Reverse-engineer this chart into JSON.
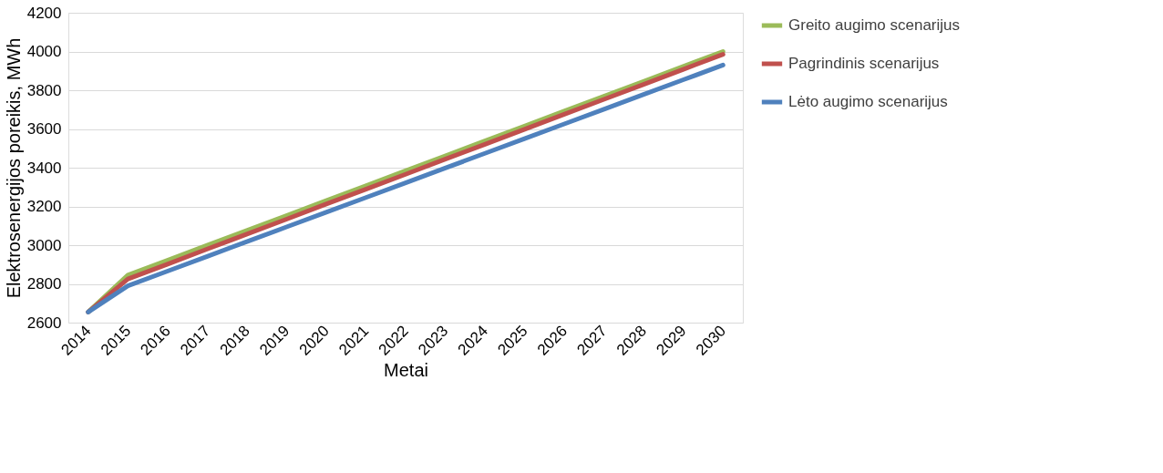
{
  "chart_data": {
    "type": "line",
    "xlabel": "Metai",
    "ylabel": "Elektrosenergijos poreikis, MWh",
    "categories": [
      "2014",
      "2015",
      "2016",
      "2017",
      "2018",
      "2019",
      "2020",
      "2021",
      "2022",
      "2023",
      "2024",
      "2025",
      "2026",
      "2027",
      "2028",
      "2029",
      "2030"
    ],
    "series": [
      {
        "name": "Greito augimo scenarijus",
        "color": "#9bbb59",
        "values": [
          2655,
          2845,
          2922,
          2999,
          3076,
          3153,
          3230,
          3307,
          3384,
          3461,
          3538,
          3615,
          3692,
          3769,
          3846,
          3923,
          4000
        ]
      },
      {
        "name": "Pagrindinis scenarijus",
        "color": "#c0504d",
        "values": [
          2655,
          2825,
          2902,
          2980,
          3057,
          3134,
          3212,
          3289,
          3366,
          3444,
          3521,
          3598,
          3676,
          3753,
          3830,
          3908,
          3985
        ]
      },
      {
        "name": "Lėto augimo scenarijus",
        "color": "#4f81bd",
        "values": [
          2655,
          2790,
          2866,
          2942,
          3018,
          3094,
          3170,
          3246,
          3322,
          3398,
          3474,
          3550,
          3626,
          3702,
          3778,
          3854,
          3930
        ]
      }
    ],
    "ylim": [
      2600,
      4200
    ],
    "yticks": [
      2600,
      2800,
      3000,
      3200,
      3400,
      3600,
      3800,
      4000,
      4200
    ],
    "grid": "y",
    "legend": "right",
    "marker": "none",
    "line_style": "solid"
  }
}
